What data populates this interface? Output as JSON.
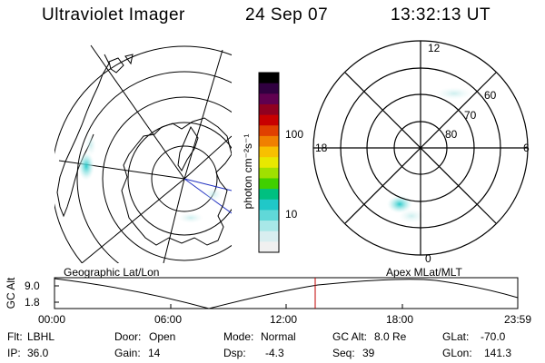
{
  "header": {
    "instrument": "Ultraviolet Imager",
    "date": "24 Sep 07",
    "time": "13:32:13 UT"
  },
  "colorbar": {
    "unit_label": "photon cm⁻²s⁻¹",
    "ticks": [
      "100",
      "10"
    ],
    "colors": [
      "#f0f0f0",
      "#d8eef0",
      "#a8e8e8",
      "#60d8d8",
      "#20c8c8",
      "#00c080",
      "#40d000",
      "#a0e000",
      "#e8e800",
      "#f8c000",
      "#f08000",
      "#e04000",
      "#c80000",
      "#900020",
      "#600050",
      "#300040",
      "#000000"
    ]
  },
  "geo_map": {
    "title": "Geographic Lat/Lon"
  },
  "polar_plot": {
    "title": "Apex MLat/MLT",
    "mlt_labels": {
      "top": "12",
      "bottom": "0",
      "left": "18",
      "right": "6"
    },
    "lat_labels": [
      "60",
      "70",
      "80"
    ]
  },
  "altitude_plot": {
    "ylabel": "GC Alt",
    "yticks": [
      "9.0",
      "1.8"
    ],
    "xticks": [
      "00:00",
      "06:00",
      "12:00",
      "18:00",
      "23:59"
    ],
    "marker_color": "#c00000"
  },
  "status": {
    "row1": [
      {
        "label": "Flt:",
        "value": "LBHL"
      },
      {
        "label": "Door:",
        "value": "Open"
      },
      {
        "label": "Mode:",
        "value": "Normal"
      },
      {
        "label": "GC Alt:",
        "value": "8.0 Re"
      },
      {
        "label": "GLat:",
        "value": "-70.0"
      }
    ],
    "row2": [
      {
        "label": "IP:",
        "value": "36.0"
      },
      {
        "label": "Gain:",
        "value": "14"
      },
      {
        "label": "Dsp:",
        "value": "-4.3"
      },
      {
        "label": "Seq:",
        "value": "39"
      },
      {
        "label": "GLon:",
        "value": "141.3"
      }
    ]
  }
}
